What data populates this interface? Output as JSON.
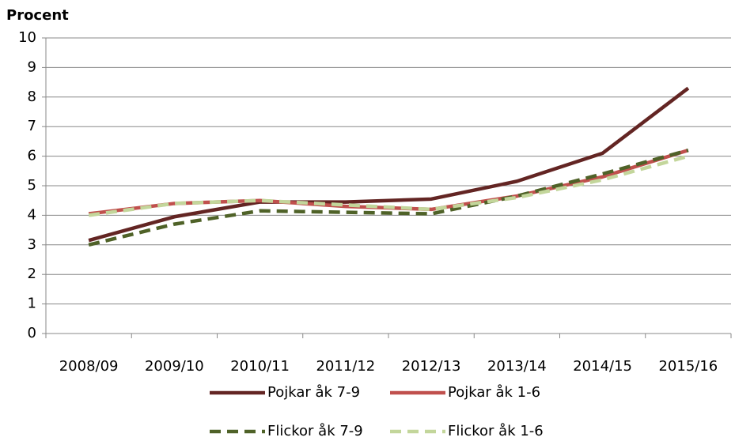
{
  "chart_data": {
    "type": "line",
    "y_label": "Procent",
    "categories": [
      "2008/09",
      "2009/10",
      "2010/11",
      "2011/12",
      "2012/13",
      "2013/14",
      "2014/15",
      "2015/16"
    ],
    "series": [
      {
        "name": "Pojkar åk 7-9",
        "color": "#632523",
        "linestyle": "solid",
        "values": [
          3.15,
          3.95,
          4.45,
          4.45,
          4.55,
          5.15,
          6.1,
          8.3
        ]
      },
      {
        "name": "Pojkar åk 1-6",
        "color": "#c0504d",
        "linestyle": "solid",
        "values": [
          4.05,
          4.4,
          4.5,
          4.3,
          4.2,
          4.65,
          5.3,
          6.2
        ]
      },
      {
        "name": "Flickor åk 7-9",
        "color": "#4f6228",
        "linestyle": "dashed",
        "values": [
          3.0,
          3.7,
          4.15,
          4.1,
          4.05,
          4.65,
          5.4,
          6.2
        ]
      },
      {
        "name": "Flickor åk 1-6",
        "color": "#c3d69b",
        "linestyle": "dashed",
        "values": [
          4.0,
          4.4,
          4.5,
          4.35,
          4.2,
          4.6,
          5.2,
          6.0
        ]
      }
    ],
    "ylim": [
      0,
      10
    ],
    "yticks": [
      0,
      1,
      2,
      3,
      4,
      5,
      6,
      7,
      8,
      9,
      10
    ],
    "grid": true,
    "legend": "bottom"
  }
}
